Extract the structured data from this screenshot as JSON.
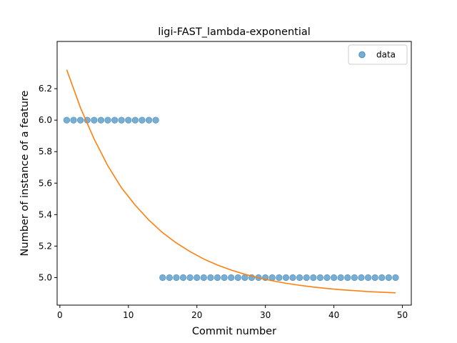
{
  "chart_data": {
    "type": "scatter",
    "title": "ligi-FAST_lambda-exponential",
    "xlabel": "Commit number",
    "ylabel": "Number of instance of a feature",
    "xlim": [
      -0.4,
      51.3
    ],
    "ylim": [
      4.825,
      6.5
    ],
    "xticks": [
      0,
      10,
      20,
      30,
      40,
      50
    ],
    "yticks": [
      5.0,
      5.2,
      5.4,
      5.6,
      5.8,
      6.0,
      6.2
    ],
    "grid": false,
    "legend_placement": "top-right",
    "series": [
      {
        "name": "data",
        "kind": "scatter",
        "color": "#1f77b4",
        "points": [
          [
            1,
            6.0
          ],
          [
            2,
            6.0
          ],
          [
            3,
            6.0
          ],
          [
            4,
            6.0
          ],
          [
            5,
            6.0
          ],
          [
            6,
            6.0
          ],
          [
            7,
            6.0
          ],
          [
            8,
            6.0
          ],
          [
            9,
            6.0
          ],
          [
            10,
            6.0
          ],
          [
            11,
            6.0
          ],
          [
            12,
            6.0
          ],
          [
            13,
            6.0
          ],
          [
            14,
            6.0
          ],
          [
            15,
            5.0
          ],
          [
            16,
            5.0
          ],
          [
            17,
            5.0
          ],
          [
            18,
            5.0
          ],
          [
            19,
            5.0
          ],
          [
            20,
            5.0
          ],
          [
            21,
            5.0
          ],
          [
            22,
            5.0
          ],
          [
            23,
            5.0
          ],
          [
            24,
            5.0
          ],
          [
            25,
            5.0
          ],
          [
            26,
            5.0
          ],
          [
            27,
            5.0
          ],
          [
            28,
            5.0
          ],
          [
            29,
            5.0
          ],
          [
            30,
            5.0
          ],
          [
            31,
            5.0
          ],
          [
            32,
            5.0
          ],
          [
            33,
            5.0
          ],
          [
            34,
            5.0
          ],
          [
            35,
            5.0
          ],
          [
            36,
            5.0
          ],
          [
            37,
            5.0
          ],
          [
            38,
            5.0
          ],
          [
            39,
            5.0
          ],
          [
            40,
            5.0
          ],
          [
            41,
            5.0
          ],
          [
            42,
            5.0
          ],
          [
            43,
            5.0
          ],
          [
            44,
            5.0
          ],
          [
            45,
            5.0
          ],
          [
            46,
            5.0
          ],
          [
            47,
            5.0
          ],
          [
            48,
            5.0
          ],
          [
            49,
            5.0
          ]
        ]
      },
      {
        "kind": "line",
        "color": "#ff7f0e",
        "points": [
          [
            1,
            6.32
          ],
          [
            3,
            6.08
          ],
          [
            5,
            5.88
          ],
          [
            7,
            5.71
          ],
          [
            9,
            5.57
          ],
          [
            11,
            5.46
          ],
          [
            13,
            5.365
          ],
          [
            15,
            5.285
          ],
          [
            17,
            5.22
          ],
          [
            19,
            5.165
          ],
          [
            21,
            5.118
          ],
          [
            23,
            5.08
          ],
          [
            25,
            5.048
          ],
          [
            27,
            5.021
          ],
          [
            29,
            4.998
          ],
          [
            31,
            4.98
          ],
          [
            33,
            4.964
          ],
          [
            35,
            4.951
          ],
          [
            37,
            4.94
          ],
          [
            39,
            4.931
          ],
          [
            41,
            4.923
          ],
          [
            43,
            4.917
          ],
          [
            45,
            4.911
          ],
          [
            47,
            4.907
          ],
          [
            49,
            4.903
          ]
        ]
      }
    ]
  }
}
